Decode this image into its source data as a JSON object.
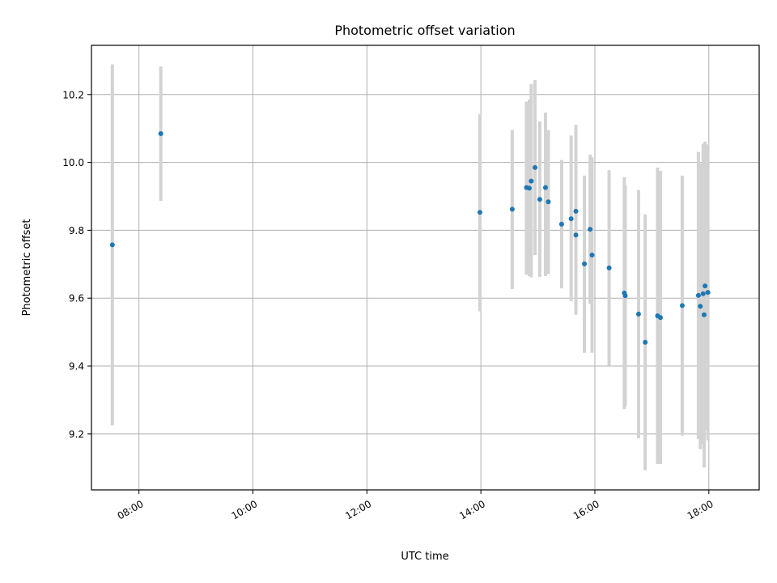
{
  "chart_data": {
    "type": "scatter",
    "title": "Photometric offset variation",
    "xlabel": "UTC time",
    "ylabel": "Photometric offset",
    "x_tick_labels": [
      "08:00",
      "10:00",
      "12:00",
      "14:00",
      "16:00",
      "18:00"
    ],
    "y_tick_labels": [
      "9.2",
      "9.4",
      "9.6",
      "9.8",
      "10.0",
      "10.2"
    ],
    "xlim": [
      "07:10",
      "18:53"
    ],
    "ylim": [
      9.035,
      10.345
    ],
    "grid": true,
    "marker_color": "#1f77b4",
    "errorbar_color": "#d3d3d3",
    "series": [
      {
        "points": [
          {
            "time": "07:32",
            "value": 9.757,
            "low": 9.225,
            "high": 10.289
          },
          {
            "time": "08:23",
            "value": 10.085,
            "low": 9.887,
            "high": 10.283
          },
          {
            "time": "13:59",
            "value": 9.853,
            "low": 9.561,
            "high": 10.143
          },
          {
            "time": "14:33",
            "value": 9.862,
            "low": 9.627,
            "high": 10.095
          },
          {
            "time": "14:48",
            "value": 9.926,
            "low": 9.669,
            "high": 10.179
          },
          {
            "time": "14:51",
            "value": 9.924,
            "low": 9.665,
            "high": 10.185
          },
          {
            "time": "14:53",
            "value": 9.945,
            "low": 9.661,
            "high": 10.231
          },
          {
            "time": "14:57",
            "value": 9.985,
            "low": 9.727,
            "high": 10.243
          },
          {
            "time": "15:02",
            "value": 9.891,
            "low": 9.663,
            "high": 10.121
          },
          {
            "time": "15:08",
            "value": 9.926,
            "low": 9.665,
            "high": 10.147
          },
          {
            "time": "15:11",
            "value": 9.884,
            "low": 9.671,
            "high": 10.095
          },
          {
            "time": "15:25",
            "value": 9.818,
            "low": 9.629,
            "high": 10.007
          },
          {
            "time": "15:35",
            "value": 9.834,
            "low": 9.591,
            "high": 10.079
          },
          {
            "time": "15:40",
            "value": 9.856,
            "low": 9.601,
            "high": 10.111
          },
          {
            "time": "15:40",
            "value": 9.786,
            "low": 9.551,
            "high": 10.021
          },
          {
            "time": "15:49",
            "value": 9.701,
            "low": 9.439,
            "high": 9.961
          },
          {
            "time": "15:55",
            "value": 9.803,
            "low": 9.583,
            "high": 10.023
          },
          {
            "time": "15:57",
            "value": 9.727,
            "low": 9.439,
            "high": 10.015
          },
          {
            "time": "16:15",
            "value": 9.689,
            "low": 9.401,
            "high": 9.977
          },
          {
            "time": "16:31",
            "value": 9.615,
            "low": 9.273,
            "high": 9.957
          },
          {
            "time": "16:32",
            "value": 9.607,
            "low": 9.281,
            "high": 9.933
          },
          {
            "time": "16:46",
            "value": 9.553,
            "low": 9.187,
            "high": 9.919
          },
          {
            "time": "16:53",
            "value": 9.47,
            "low": 9.093,
            "high": 9.847
          },
          {
            "time": "17:06",
            "value": 9.548,
            "low": 9.111,
            "high": 9.985
          },
          {
            "time": "17:09",
            "value": 9.543,
            "low": 9.111,
            "high": 9.975
          },
          {
            "time": "17:32",
            "value": 9.578,
            "low": 9.195,
            "high": 9.961
          },
          {
            "time": "17:49",
            "value": 9.608,
            "low": 9.185,
            "high": 10.031
          },
          {
            "time": "17:51",
            "value": 9.576,
            "low": 9.155,
            "high": 9.997
          },
          {
            "time": "17:54",
            "value": 9.613,
            "low": 9.171,
            "high": 10.055
          },
          {
            "time": "17:55",
            "value": 9.551,
            "low": 9.101,
            "high": 10.001
          },
          {
            "time": "17:56",
            "value": 9.636,
            "low": 9.211,
            "high": 10.061
          },
          {
            "time": "17:59",
            "value": 9.617,
            "low": 9.181,
            "high": 10.053
          }
        ]
      }
    ]
  }
}
